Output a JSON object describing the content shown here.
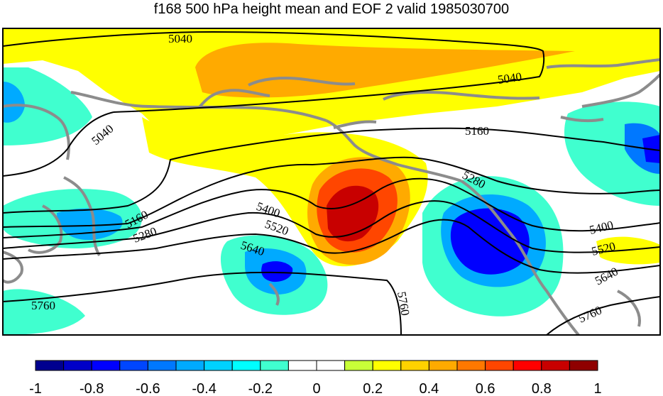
{
  "title": "f168 500 hPa height mean and EOF 2 valid 1985030700",
  "contour_labels": [
    "5040",
    "5040",
    "5040",
    "5160",
    "5160",
    "5280",
    "5280",
    "5400",
    "5400",
    "5520",
    "5520",
    "5640",
    "5640",
    "5760",
    "5760",
    "5760"
  ],
  "colorbar": {
    "tick_labels": [
      "-1",
      "-0.8",
      "-0.6",
      "-0.4",
      "-0.2",
      "0",
      "0.2",
      "0.4",
      "0.6",
      "0.8",
      "1"
    ],
    "colors": [
      "#00008f",
      "#0000c8",
      "#0000ff",
      "#0046ff",
      "#0078ff",
      "#00aaff",
      "#00d2ff",
      "#00ffff",
      "#40ffcf",
      "#ffffff",
      "#ffffff",
      "#c8ff38",
      "#ffff00",
      "#ffd200",
      "#ffaa00",
      "#ff7800",
      "#ff4600",
      "#ff0000",
      "#c80000",
      "#8f0000"
    ]
  },
  "colors": {
    "coastline": "#8c8c8c",
    "contour": "#000000",
    "frame": "#000000"
  }
}
